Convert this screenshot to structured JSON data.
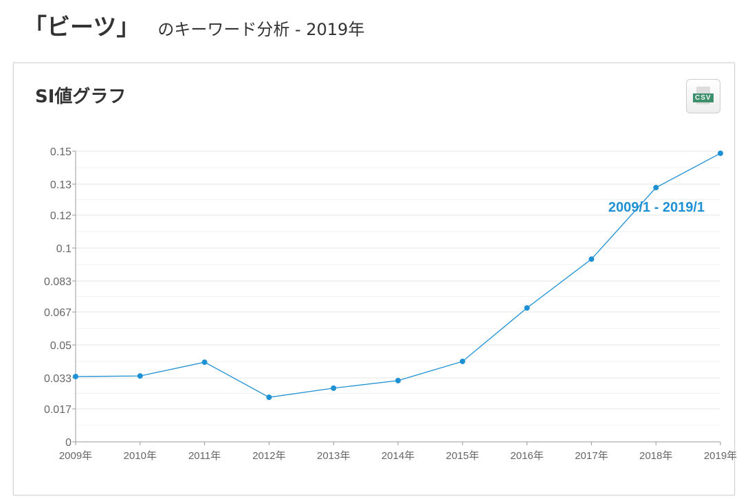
{
  "header": {
    "keyword": "「ビーツ」",
    "subtitle": "のキーワード分析 - 2019年"
  },
  "panel": {
    "title": "SI値グラフ",
    "csv_label": "CSV"
  },
  "colors": {
    "series": "#1e90d4",
    "grid": "#e6e6e6",
    "axis": "#999999"
  },
  "chart_data": {
    "type": "line",
    "categories": [
      "2009年",
      "2010年",
      "2011年",
      "2012年",
      "2013年",
      "2014年",
      "2015年",
      "2016年",
      "2017年",
      "2018年",
      "2019年"
    ],
    "series": [
      {
        "name": "2009/1 - 2019/1",
        "values": [
          0.0337,
          0.034,
          0.0411,
          0.023,
          0.0277,
          0.0316,
          0.0415,
          0.0691,
          0.0943,
          0.1312,
          0.1489
        ]
      }
    ],
    "yticks": [
      0,
      0.017,
      0.033,
      0.05,
      0.067,
      0.083,
      0.1,
      0.117,
      0.133,
      0.15
    ],
    "ytick_labels": [
      "0",
      "0.017",
      "0.033",
      "0.05",
      "0.067",
      "0.083",
      "0.1",
      "0.12",
      "0.13",
      "0.15"
    ],
    "ylim": [
      0,
      0.15
    ],
    "series_label": "2009/1 - 2019/1",
    "legend": "top-right"
  }
}
